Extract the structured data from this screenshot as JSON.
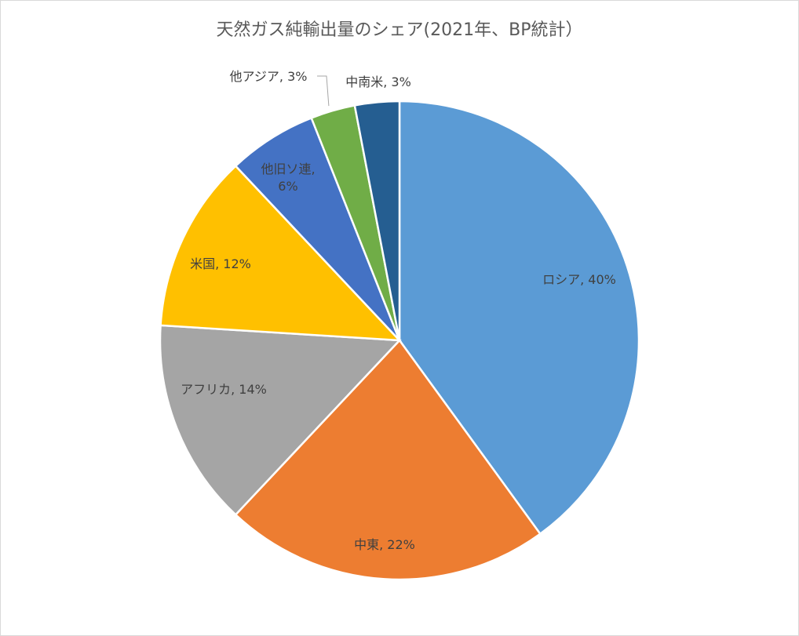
{
  "chart_data": {
    "type": "pie",
    "title": "天然ガス純輸出量のシェア(2021年、BP統計）",
    "slices": [
      {
        "name": "ロシア",
        "value": 40,
        "label": [
          "ロシア, 40%"
        ],
        "color": "#5b9bd5"
      },
      {
        "name": "中東",
        "value": 22,
        "label": [
          "中東, 22%"
        ],
        "color": "#ed7d31"
      },
      {
        "name": "アフリカ",
        "value": 14,
        "label": [
          "アフリカ, 14%"
        ],
        "color": "#a5a5a5"
      },
      {
        "name": "米国",
        "value": 12,
        "label": [
          "米国, 12%"
        ],
        "color": "#ffc000"
      },
      {
        "name": "他旧ソ連",
        "value": 6,
        "label": [
          "他旧ソ連,",
          "6%"
        ],
        "color": "#4472c4"
      },
      {
        "name": "他アジア",
        "value": 3,
        "label": [
          "他アジア, 3%"
        ],
        "color": "#70ad47"
      },
      {
        "name": "中南米",
        "value": 3,
        "label": [
          "中南米, 3%"
        ],
        "color": "#255e91"
      }
    ]
  }
}
